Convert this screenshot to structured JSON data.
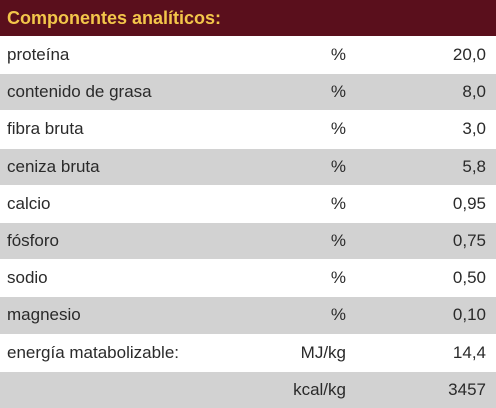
{
  "header": {
    "title": "Componentes analíticos:"
  },
  "rows": [
    {
      "label": "proteína",
      "unit": "%",
      "value": "20,0"
    },
    {
      "label": "contenido de grasa",
      "unit": "%",
      "value": "8,0"
    },
    {
      "label": "fibra bruta",
      "unit": "%",
      "value": "3,0"
    },
    {
      "label": "ceniza bruta",
      "unit": "%",
      "value": "5,8"
    },
    {
      "label": "calcio",
      "unit": "%",
      "value": "0,95"
    },
    {
      "label": "fósforo",
      "unit": "%",
      "value": "0,75"
    },
    {
      "label": "sodio",
      "unit": "%",
      "value": "0,50"
    },
    {
      "label": "magnesio",
      "unit": "%",
      "value": "0,10"
    },
    {
      "label": "energía matabolizable:",
      "unit": "MJ/kg",
      "value": "14,4"
    },
    {
      "label": "",
      "unit": "kcal/kg",
      "value": "3457"
    }
  ],
  "colors": {
    "header_bg": "#5a0f1c",
    "header_text": "#f3c64a",
    "row_alt_bg": "#d2d2d2"
  }
}
